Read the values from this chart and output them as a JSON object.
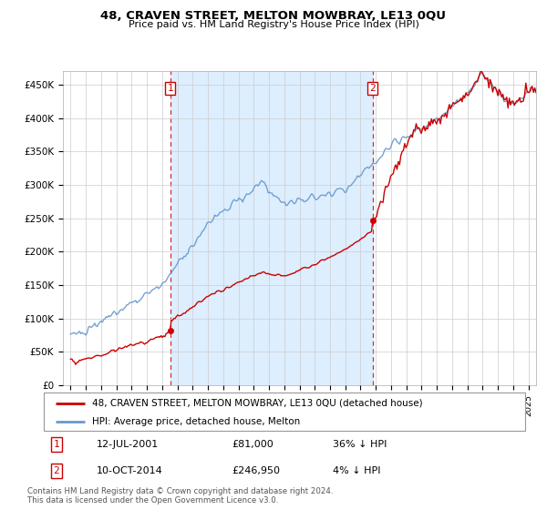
{
  "title": "48, CRAVEN STREET, MELTON MOWBRAY, LE13 0QU",
  "subtitle": "Price paid vs. HM Land Registry's House Price Index (HPI)",
  "legend_line1": "48, CRAVEN STREET, MELTON MOWBRAY, LE13 0QU (detached house)",
  "legend_line2": "HPI: Average price, detached house, Melton",
  "transaction1_date": "12-JUL-2001",
  "transaction1_price": "£81,000",
  "transaction1_hpi": "36% ↓ HPI",
  "transaction1_year": 2001.53,
  "transaction1_value": 81000,
  "transaction2_date": "10-OCT-2014",
  "transaction2_price": "£246,950",
  "transaction2_hpi": "4% ↓ HPI",
  "transaction2_year": 2014.78,
  "transaction2_value": 246950,
  "red_line_color": "#cc0000",
  "blue_line_color": "#6699cc",
  "shade_color": "#ddeeff",
  "vline_color": "#cc0000",
  "dot_color": "#cc0000",
  "grid_color": "#cccccc",
  "background_color": "#ffffff",
  "ylim_min": 0,
  "ylim_max": 470000,
  "yticks": [
    0,
    50000,
    100000,
    150000,
    200000,
    250000,
    300000,
    350000,
    400000,
    450000
  ],
  "ytick_labels": [
    "£0",
    "£50K",
    "£100K",
    "£150K",
    "£200K",
    "£250K",
    "£300K",
    "£350K",
    "£400K",
    "£450K"
  ],
  "footer": "Contains HM Land Registry data © Crown copyright and database right 2024.\nThis data is licensed under the Open Government Licence v3.0.",
  "xlim_min": 1994.5,
  "xlim_max": 2025.5
}
